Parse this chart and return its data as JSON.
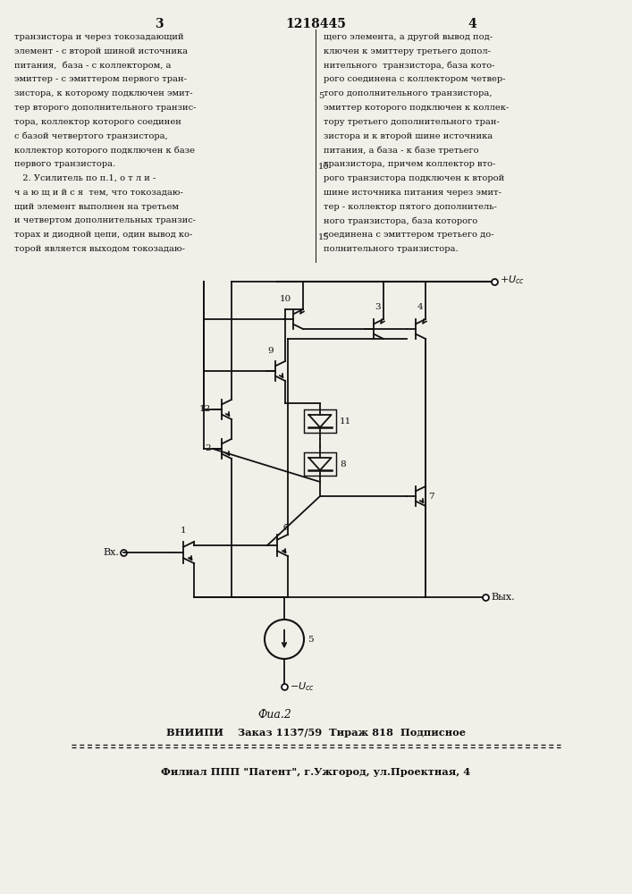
{
  "page_number_left": "3",
  "patent_number": "1218445",
  "page_number_right": "4",
  "text_left": [
    "транзистора и через токозадающий",
    "элемент - с второй шиной источника",
    "питания,  база - с коллектором, а",
    "эмиттер - с эмиттером первого тран-",
    "зистора, к которому подключен эмит-",
    "тер второго дополнительного транзис-",
    "тора, коллектор которого соединен",
    "с базой четвертого транзистора,",
    "коллектор которого подключен к базе",
    "первого транзистора.",
    "   2. Усилитель по п.1, о т л и -",
    "ч а ю щ и й с я  тем, что токозадаю-",
    "щий элемент выполнен на третьем",
    "и четвертом дополнительных транзис-",
    "торах и диодной цепи, один вывод ко-",
    "торой является выходом токозадаю-"
  ],
  "text_right": [
    "щего элемента, а другой вывод под-",
    "ключен к эмиттеру третьего допол-",
    "нительного  транзистора, база кото-",
    "рого соединена с коллектором четвер-",
    "того дополнительного транзистора,",
    "эмиттер которого подключен к коллек-",
    "тору третьего дополнительного тран-",
    "зистора и к второй шине источника",
    "питания, а база - к базе третьего",
    "транзистора, причем коллектор вто-",
    "рого транзистора подключен к второй",
    "шине источника питания через эмит-",
    "тер - коллектор пятого дополнитель-",
    "ного транзистора, база которого",
    "соединена с эмиттером третьего до-",
    "полнительного транзистора."
  ],
  "line_numbers_rows": [
    4,
    9,
    14
  ],
  "line_numbers": [
    "5",
    "10",
    "15"
  ],
  "footer_line1": "ВНИИПИ    Заказ 1137/59  Тираж 818  Подписное",
  "footer_line2": "Филиал ППП \"Патент\", г.Ужгород, ул.Проектная, 4",
  "caption": "Фиа.2",
  "bg_color": "#f2efe9",
  "text_color": "#111111",
  "line_color": "#111111"
}
